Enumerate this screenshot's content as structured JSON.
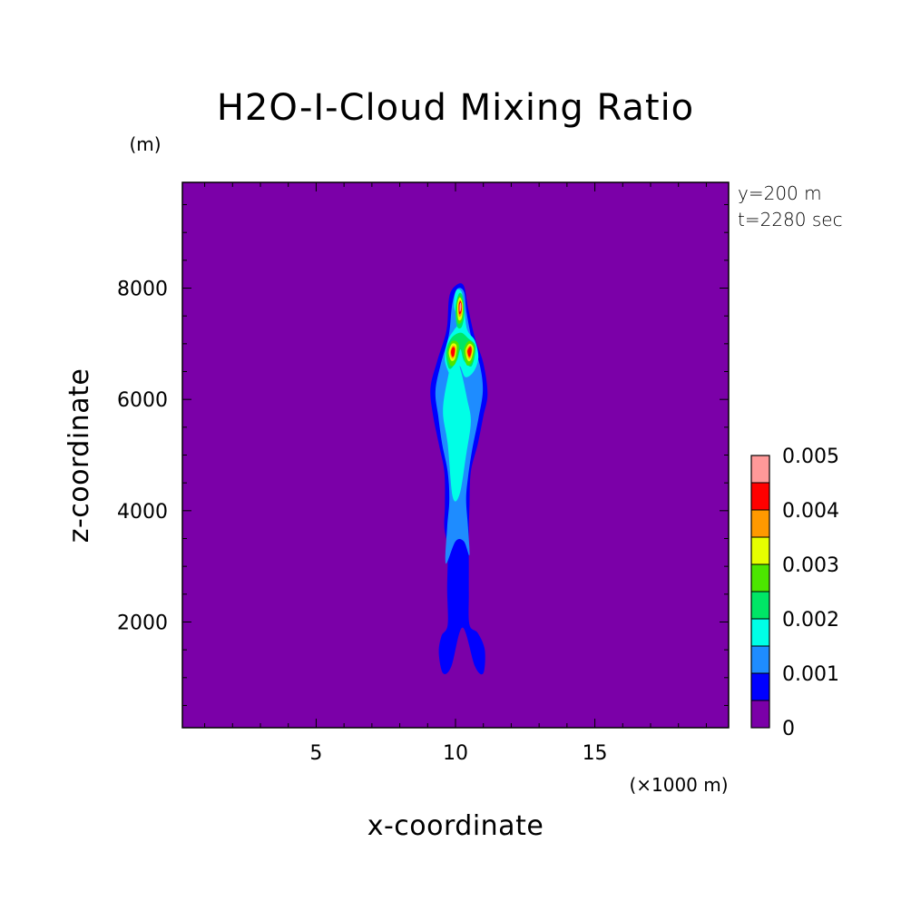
{
  "chart_data": {
    "type": "contour",
    "title": "H2O-I-Cloud Mixing Ratio",
    "xlabel": "x-coordinate",
    "ylabel": "z-coordinate",
    "x_unit": "(×1000 m)",
    "y_unit": "(m)",
    "annotations": [
      "y=200 m",
      "t=2280 sec"
    ],
    "xlim": [
      0.2,
      19.8
    ],
    "ylim": [
      100,
      9900
    ],
    "x_ticks": [
      5,
      10,
      15
    ],
    "y_ticks": [
      2000,
      4000,
      6000,
      8000
    ],
    "grid": false,
    "background_value": 0,
    "colorbar": {
      "levels": [
        0,
        0.0005,
        0.001,
        0.0015,
        0.002,
        0.0025,
        0.003,
        0.0035,
        0.004,
        0.0045,
        0.005
      ],
      "labels": [
        "0",
        "0.001",
        "0.002",
        "0.003",
        "0.004",
        "0.005"
      ],
      "label_values": [
        0,
        0.001,
        0.002,
        0.003,
        0.004,
        0.005
      ],
      "colors": [
        "#7b00a8",
        "#0000ff",
        "#1e8cff",
        "#00ffe6",
        "#00e666",
        "#4ce600",
        "#e6ff00",
        "#ff9900",
        "#ff0000",
        "#ff9999"
      ]
    },
    "contour_regions": [
      {
        "level": 0.0005,
        "points": [
          [
            9.55,
            1080
          ],
          [
            9.4,
            1450
          ],
          [
            9.5,
            1750
          ],
          [
            9.72,
            1950
          ],
          [
            9.7,
            2600
          ],
          [
            9.72,
            3300
          ],
          [
            9.6,
            3700
          ],
          [
            9.62,
            4100
          ],
          [
            9.6,
            4700
          ],
          [
            9.4,
            5200
          ],
          [
            9.2,
            5700
          ],
          [
            9.1,
            6200
          ],
          [
            9.35,
            6700
          ],
          [
            9.68,
            7250
          ],
          [
            9.78,
            7850
          ],
          [
            10.05,
            8060
          ],
          [
            10.3,
            8040
          ],
          [
            10.45,
            7650
          ],
          [
            10.7,
            7100
          ],
          [
            11.0,
            6650
          ],
          [
            11.15,
            6100
          ],
          [
            11.0,
            5700
          ],
          [
            10.8,
            5200
          ],
          [
            10.55,
            4700
          ],
          [
            10.5,
            4100
          ],
          [
            10.48,
            3600
          ],
          [
            10.48,
            3000
          ],
          [
            10.48,
            2500
          ],
          [
            10.5,
            1950
          ],
          [
            10.8,
            1800
          ],
          [
            11.05,
            1500
          ],
          [
            11.0,
            1080
          ],
          [
            10.7,
            1200
          ],
          [
            10.25,
            1900
          ],
          [
            9.85,
            1200
          ]
        ]
      },
      {
        "level": 0.001,
        "points": [
          [
            9.65,
            3050
          ],
          [
            9.7,
            3700
          ],
          [
            9.78,
            4200
          ],
          [
            9.72,
            4700
          ],
          [
            9.52,
            5200
          ],
          [
            9.38,
            5700
          ],
          [
            9.28,
            6150
          ],
          [
            9.48,
            6650
          ],
          [
            9.76,
            7150
          ],
          [
            9.88,
            7700
          ],
          [
            10.05,
            7980
          ],
          [
            10.3,
            7940
          ],
          [
            10.4,
            7550
          ],
          [
            10.6,
            7050
          ],
          [
            10.88,
            6600
          ],
          [
            10.98,
            6150
          ],
          [
            10.82,
            5650
          ],
          [
            10.6,
            5100
          ],
          [
            10.45,
            4600
          ],
          [
            10.38,
            4200
          ],
          [
            10.45,
            3700
          ],
          [
            10.5,
            3200
          ],
          [
            10.3,
            3450
          ],
          [
            10.0,
            3450
          ]
        ]
      },
      {
        "level": 0.0015,
        "points": [
          [
            9.9,
            4250
          ],
          [
            9.72,
            5200
          ],
          [
            9.55,
            5800
          ],
          [
            9.75,
            6450
          ],
          [
            9.95,
            6850
          ],
          [
            10.2,
            6500
          ],
          [
            10.42,
            6000
          ],
          [
            10.55,
            5600
          ],
          [
            10.38,
            5000
          ],
          [
            10.15,
            4300
          ]
        ]
      },
      {
        "level": 0.0015,
        "points": [
          [
            9.85,
            6400
          ],
          [
            9.62,
            6700
          ],
          [
            9.72,
            7050
          ],
          [
            9.95,
            7250
          ],
          [
            10.15,
            7400
          ],
          [
            9.95,
            7650
          ],
          [
            10.02,
            7950
          ],
          [
            10.22,
            7930
          ],
          [
            10.32,
            7600
          ],
          [
            10.42,
            7250
          ],
          [
            10.7,
            7050
          ],
          [
            10.82,
            6750
          ],
          [
            10.65,
            6500
          ],
          [
            10.35,
            6400
          ],
          [
            10.15,
            6600
          ],
          [
            9.95,
            6450
          ]
        ]
      },
      {
        "level": 0.002,
        "points": [
          [
            9.78,
            6550
          ],
          [
            9.66,
            6850
          ],
          [
            9.85,
            7100
          ],
          [
            10.18,
            7200
          ],
          [
            10.45,
            7100
          ],
          [
            10.72,
            6950
          ],
          [
            10.58,
            6600
          ],
          [
            10.3,
            6700
          ],
          [
            10.18,
            6900
          ],
          [
            10.05,
            6700
          ]
        ]
      },
      {
        "level": 0.002,
        "points": [
          [
            10.05,
            7320
          ],
          [
            10.0,
            7650
          ],
          [
            10.12,
            7900
          ],
          [
            10.26,
            7850
          ],
          [
            10.32,
            7550
          ],
          [
            10.22,
            7300
          ]
        ]
      },
      {
        "level": 0.0025,
        "points": [
          [
            9.8,
            6620
          ],
          [
            9.72,
            6850
          ],
          [
            9.88,
            7050
          ],
          [
            10.12,
            6980
          ],
          [
            10.0,
            6650
          ]
        ]
      },
      {
        "level": 0.0025,
        "points": [
          [
            10.4,
            6620
          ],
          [
            10.3,
            6880
          ],
          [
            10.48,
            7050
          ],
          [
            10.68,
            6950
          ],
          [
            10.6,
            6680
          ]
        ]
      },
      {
        "level": 0.0025,
        "points": [
          [
            10.08,
            7380
          ],
          [
            10.04,
            7700
          ],
          [
            10.15,
            7860
          ],
          [
            10.28,
            7700
          ],
          [
            10.24,
            7420
          ]
        ]
      },
      {
        "level": 0.003,
        "points": [
          [
            9.84,
            6700
          ],
          [
            9.76,
            6850
          ],
          [
            9.88,
            7000
          ],
          [
            10.04,
            6960
          ],
          [
            9.98,
            6730
          ]
        ]
      },
      {
        "level": 0.003,
        "points": [
          [
            10.44,
            6700
          ],
          [
            10.36,
            6880
          ],
          [
            10.5,
            7000
          ],
          [
            10.64,
            6920
          ],
          [
            10.56,
            6720
          ]
        ]
      },
      {
        "level": 0.003,
        "points": [
          [
            10.1,
            7440
          ],
          [
            10.07,
            7700
          ],
          [
            10.16,
            7830
          ],
          [
            10.26,
            7690
          ],
          [
            10.22,
            7460
          ]
        ]
      },
      {
        "level": 0.0035,
        "points": [
          [
            9.87,
            6740
          ],
          [
            9.81,
            6850
          ],
          [
            9.9,
            6960
          ],
          [
            10.0,
            6930
          ],
          [
            9.96,
            6770
          ]
        ]
      },
      {
        "level": 0.0035,
        "points": [
          [
            10.47,
            6740
          ],
          [
            10.4,
            6870
          ],
          [
            10.52,
            6970
          ],
          [
            10.6,
            6910
          ],
          [
            10.55,
            6760
          ]
        ]
      },
      {
        "level": 0.0035,
        "points": [
          [
            10.12,
            7500
          ],
          [
            10.1,
            7700
          ],
          [
            10.17,
            7790
          ],
          [
            10.24,
            7680
          ],
          [
            10.21,
            7520
          ]
        ]
      },
      {
        "level": 0.004,
        "points": [
          [
            9.88,
            6770
          ],
          [
            9.84,
            6860
          ],
          [
            9.91,
            6940
          ],
          [
            9.98,
            6900
          ],
          [
            9.95,
            6790
          ]
        ]
      },
      {
        "level": 0.004,
        "points": [
          [
            10.48,
            6770
          ],
          [
            10.43,
            6870
          ],
          [
            10.53,
            6950
          ],
          [
            10.58,
            6890
          ],
          [
            10.54,
            6790
          ]
        ]
      },
      {
        "level": 0.004,
        "points": [
          [
            10.13,
            7540
          ],
          [
            10.12,
            7700
          ],
          [
            10.18,
            7770
          ],
          [
            10.23,
            7680
          ],
          [
            10.2,
            7560
          ]
        ]
      },
      {
        "level": 0.0045,
        "points": [
          [
            10.15,
            7580
          ],
          [
            10.15,
            7700
          ],
          [
            10.19,
            7740
          ],
          [
            10.21,
            7670
          ],
          [
            10.19,
            7600
          ]
        ]
      }
    ]
  }
}
